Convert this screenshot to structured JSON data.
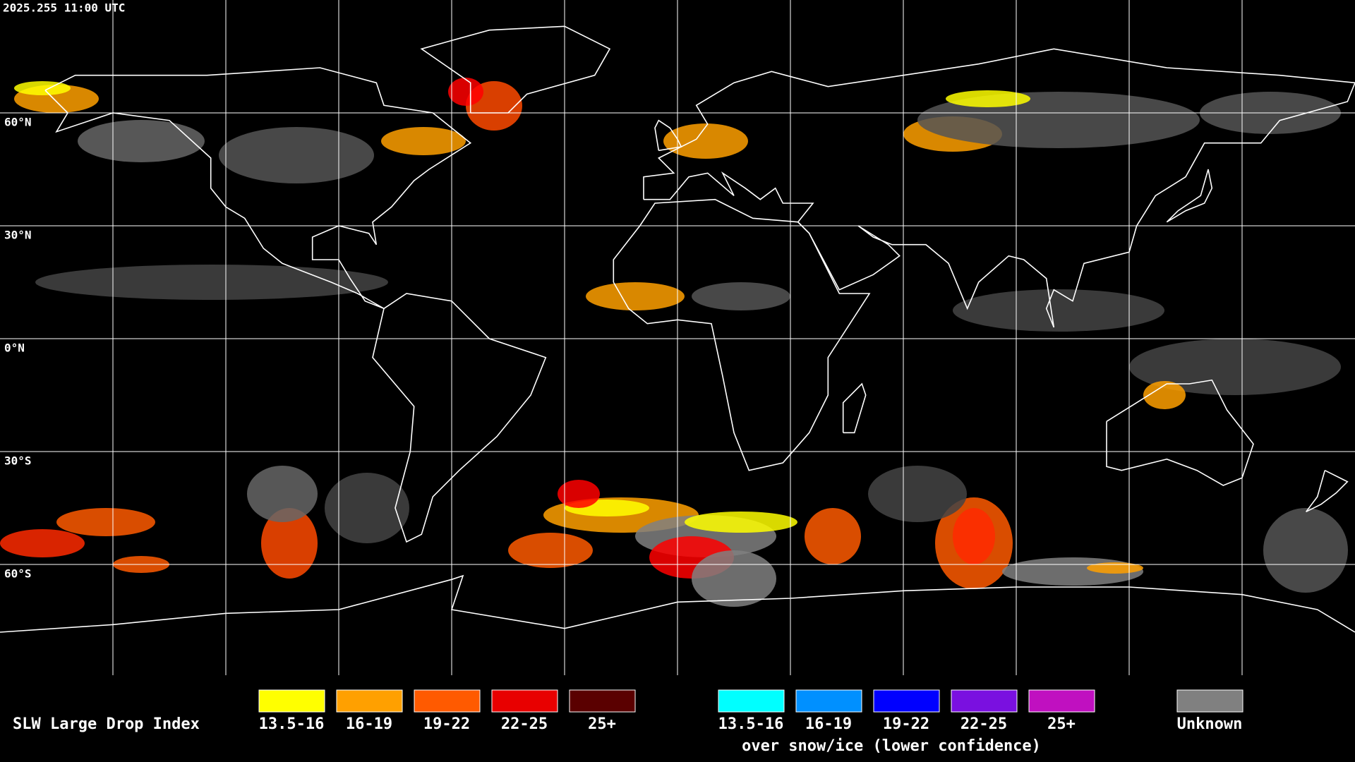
{
  "header": {
    "timestamp": "2025.255 11:00 UTC"
  },
  "grid_labels": [
    "60°N",
    "30°N",
    "0°N",
    "30°S",
    "60°S"
  ],
  "legend": {
    "title": "SLW Large Drop Index",
    "items": [
      {
        "label": "13.5-16",
        "color": "#ffff00"
      },
      {
        "label": "16-19",
        "color": "#ffa000"
      },
      {
        "label": "19-22",
        "color": "#ff5a00"
      },
      {
        "label": "22-25",
        "color": "#e80000"
      },
      {
        "label": "25+",
        "color": "#5a0000"
      }
    ],
    "snow_ice_items": [
      {
        "label": "13.5-16",
        "color": "#00ffff"
      },
      {
        "label": "16-19",
        "color": "#0090ff"
      },
      {
        "label": "19-22",
        "color": "#0000ff"
      },
      {
        "label": "22-25",
        "color": "#7a10e0"
      },
      {
        "label": "25+",
        "color": "#c010c0"
      }
    ],
    "snow_ice_note": "over snow/ice (lower confidence)",
    "unknown": {
      "label": "Unknown",
      "color": "#808080"
    }
  }
}
